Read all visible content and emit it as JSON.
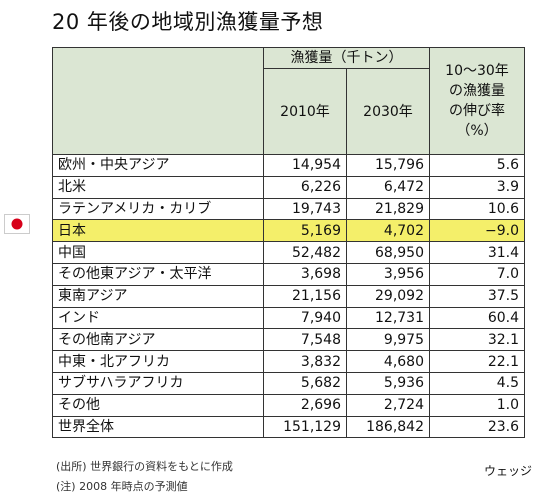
{
  "title": "20 年後の地域別漁獲量予想",
  "table": {
    "header": {
      "group": "漁獲量（千トン）",
      "years": [
        "2010年",
        "2030年"
      ],
      "growth": [
        "10～30年",
        "の漁獲量",
        "の伸び率",
        "（%）"
      ]
    },
    "highlight_row": 3,
    "rows": [
      [
        "欧州・中央アジア",
        "14,954",
        "15,796",
        "5.6"
      ],
      [
        "北米",
        "6,226",
        "6,472",
        "3.9"
      ],
      [
        "ラテンアメリカ・カリブ",
        "19,743",
        "21,829",
        "10.6"
      ],
      [
        "日本",
        "5,169",
        "4,702",
        "−9.0"
      ],
      [
        "中国",
        "52,482",
        "68,950",
        "31.4"
      ],
      [
        "その他東アジア・太平洋",
        "3,698",
        "3,956",
        "7.0"
      ],
      [
        "東南アジア",
        "21,156",
        "29,092",
        "37.5"
      ],
      [
        "インド",
        "7,940",
        "12,731",
        "60.4"
      ],
      [
        "その他南アジア",
        "7,548",
        "9,975",
        "32.1"
      ],
      [
        "中東・北アフリカ",
        "3,832",
        "4,680",
        "22.1"
      ],
      [
        "サブサハラアフリカ",
        "5,682",
        "5,936",
        "4.5"
      ],
      [
        "その他",
        "2,696",
        "2,724",
        "1.0"
      ],
      [
        "世界全体",
        "151,129",
        "186,842",
        "23.6"
      ]
    ]
  },
  "notes": [
    "(出所) 世界銀行の資料をもとに作成",
    "(注) 2008 年時点の予測値"
  ],
  "credit": "ウェッジ"
}
